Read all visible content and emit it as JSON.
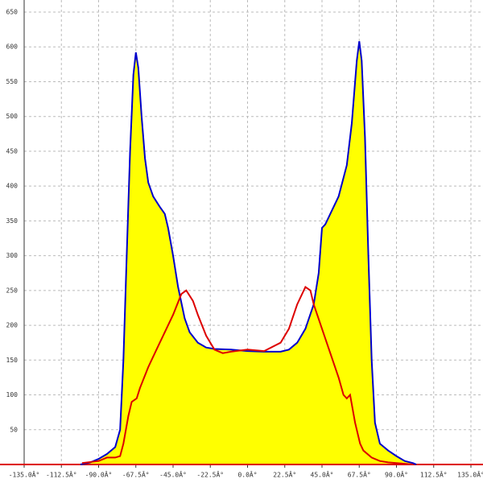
{
  "chart_data": {
    "type": "line",
    "xlim": [
      -135,
      135
    ],
    "ylim": [
      0,
      650
    ],
    "xticks": [
      {
        "value": -135,
        "label": "-135.0Â°"
      },
      {
        "value": -112.5,
        "label": "-112.5Â°"
      },
      {
        "value": -90,
        "label": "-90.0Â°"
      },
      {
        "value": -67.5,
        "label": "-67.5Â°"
      },
      {
        "value": -45,
        "label": "-45.0Â°"
      },
      {
        "value": -22.5,
        "label": "-22.5Â°"
      },
      {
        "value": 0,
        "label": "0.0Â°"
      },
      {
        "value": 22.5,
        "label": "22.5Â°"
      },
      {
        "value": 45,
        "label": "45.0Â°"
      },
      {
        "value": 67.5,
        "label": "67.5Â°"
      },
      {
        "value": 90,
        "label": "90.0Â°"
      },
      {
        "value": 112.5,
        "label": "112.5Â°"
      },
      {
        "value": 135,
        "label": "135.0Â°"
      }
    ],
    "yticks": [
      50,
      100,
      150,
      200,
      250,
      300,
      350,
      400,
      450,
      500,
      550,
      600,
      650
    ],
    "grid": true,
    "series": [
      {
        "color": "#0000cc",
        "fill": "#ffff00",
        "x": [
          -101,
          -95,
          -90,
          -85,
          -80,
          -77,
          -75,
          -73,
          -71,
          -69,
          -67.5,
          -66,
          -64,
          -62,
          -60,
          -57,
          -53,
          -50,
          -48,
          -45,
          -42,
          -38,
          -35,
          -30,
          -25,
          -20,
          -10,
          0,
          10,
          20,
          25,
          30,
          35,
          40,
          43,
          45,
          47,
          50,
          55,
          60,
          63,
          66,
          67.5,
          69,
          71,
          73,
          75,
          77,
          80,
          85,
          90,
          95,
          100,
          102
        ],
        "values": [
          0,
          3,
          8,
          15,
          25,
          50,
          150,
          300,
          450,
          560,
          592,
          570,
          500,
          440,
          405,
          385,
          370,
          360,
          340,
          300,
          255,
          210,
          190,
          175,
          168,
          166,
          165,
          163,
          162,
          162,
          165,
          175,
          195,
          230,
          275,
          340,
          345,
          360,
          385,
          430,
          490,
          580,
          608,
          580,
          470,
          300,
          150,
          60,
          30,
          20,
          12,
          5,
          2,
          0
        ]
      },
      {
        "color": "#dd0000",
        "x": [
          -100,
          -90,
          -85,
          -80,
          -77,
          -75,
          -72,
          -70,
          -67,
          -65,
          -60,
          -55,
          -50,
          -45,
          -40,
          -37,
          -33,
          -30,
          -25,
          -20,
          -15,
          -10,
          0,
          10,
          20,
          25,
          30,
          35,
          38,
          40,
          45,
          50,
          55,
          58,
          60,
          62,
          65,
          68,
          70,
          75,
          80,
          85,
          90,
          100
        ],
        "values": [
          2,
          5,
          10,
          10,
          12,
          30,
          70,
          90,
          95,
          110,
          140,
          165,
          190,
          215,
          245,
          250,
          235,
          215,
          185,
          165,
          160,
          162,
          165,
          163,
          175,
          195,
          230,
          255,
          250,
          230,
          195,
          160,
          125,
          100,
          95,
          100,
          60,
          30,
          20,
          10,
          5,
          3,
          2,
          0
        ]
      }
    ]
  }
}
